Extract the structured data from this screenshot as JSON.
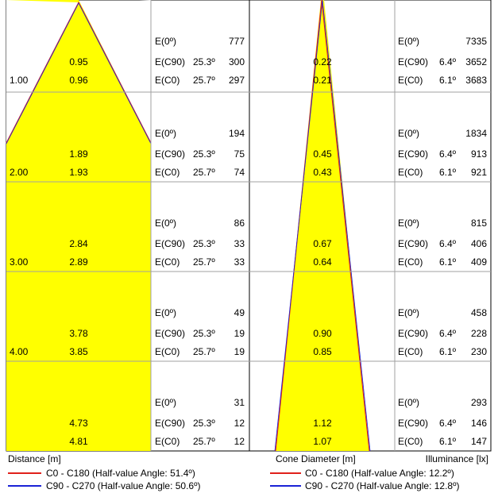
{
  "rows": [
    {
      "distance": "",
      "left": {
        "d1": "0.95",
        "d2": "0.96",
        "lbl": "1.00",
        "e0": "777",
        "e90": "300",
        "e0c": "297"
      },
      "right": {
        "d1": "0.22",
        "d2": "0.21",
        "e0": "7335",
        "e90": "3652",
        "e0c": "3683"
      }
    },
    {
      "left": {
        "d1": "1.89",
        "d2": "1.93",
        "lbl": "2.00",
        "e0": "194",
        "e90": "75",
        "e0c": "74"
      },
      "right": {
        "d1": "0.45",
        "d2": "0.43",
        "e0": "1834",
        "e90": "913",
        "e0c": "921"
      }
    },
    {
      "left": {
        "d1": "2.84",
        "d2": "2.89",
        "lbl": "3.00",
        "e0": "86",
        "e90": "33",
        "e0c": "33"
      },
      "right": {
        "d1": "0.67",
        "d2": "0.64",
        "e0": "815",
        "e90": "406",
        "e0c": "409"
      }
    },
    {
      "left": {
        "d1": "3.78",
        "d2": "3.85",
        "lbl": "4.00",
        "e0": "49",
        "e90": "19",
        "e0c": "19"
      },
      "right": {
        "d1": "0.90",
        "d2": "0.85",
        "e0": "458",
        "e90": "228",
        "e0c": "230"
      }
    },
    {
      "left": {
        "d1": "4.73",
        "d2": "4.81",
        "lbl": "",
        "e0": "31",
        "e90": "12",
        "e0c": "12"
      },
      "right": {
        "d1": "1.12",
        "d2": "1.07",
        "e0": "293",
        "e90": "146",
        "e0c": "147"
      }
    }
  ],
  "labels": {
    "e0": "E(0º)",
    "e90": "E(C90)",
    "e0c": "E(C0)",
    "left_angle_c90": "25.3º",
    "left_angle_c0": "25.7º",
    "right_angle_c90": "6.4º",
    "right_angle_c0": "6.1º"
  },
  "footer": {
    "distance": "Distance [m]",
    "cone_diameter": "Cone Diameter [m]",
    "illuminance": "Illuminance [lx]",
    "left_legend_c0": "C0 - C180 (Half-value Angle: 51.4º)",
    "left_legend_c90": "C90 - C270 (Half-value Angle: 50.6º)",
    "right_legend_c0": "C0 - C180 (Half-value Angle: 12.2º)",
    "right_legend_c90": "C90 - C270 (Half-value Angle: 12.8º)"
  },
  "colors": {
    "cone_fill": "#ffff00",
    "c0_line": "#e0201b",
    "c90_line": "#1a22d6",
    "grid": "#a0a0a0",
    "border": "#000000"
  }
}
